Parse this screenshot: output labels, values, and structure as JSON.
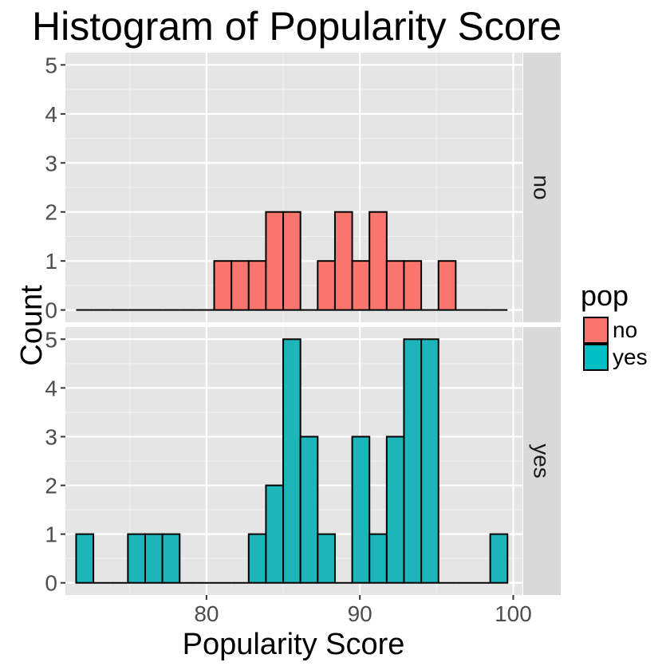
{
  "chart_data": {
    "type": "bar",
    "title": "Histogram of Popularity Score",
    "xlabel": "Popularity Score",
    "ylabel": "Count",
    "xlim": [
      70.8,
      100.6
    ],
    "ylim": [
      -0.25,
      5.25
    ],
    "x_ticks": [
      80,
      90,
      100
    ],
    "y_ticks": [
      0,
      1,
      2,
      3,
      4,
      5
    ],
    "grid": true,
    "legend": {
      "title": "pop",
      "position": "right",
      "entries": [
        {
          "label": "no",
          "color": "#F8766D"
        },
        {
          "label": "yes",
          "color": "#00BFC4"
        }
      ]
    },
    "bins": {
      "start": 71.5,
      "width": 1.125,
      "count": 25
    },
    "facets": [
      {
        "label": "no",
        "color": "#F8766D",
        "counts": [
          0,
          0,
          0,
          0,
          0,
          0,
          0,
          0,
          1,
          1,
          1,
          2,
          2,
          0,
          1,
          2,
          1,
          2,
          1,
          1,
          0,
          1,
          0,
          0,
          0
        ]
      },
      {
        "label": "yes",
        "color": "#1CB5BA",
        "counts": [
          1,
          0,
          0,
          1,
          1,
          1,
          0,
          0,
          0,
          0,
          1,
          2,
          5,
          3,
          1,
          0,
          3,
          1,
          3,
          5,
          5,
          0,
          0,
          0,
          1
        ]
      }
    ]
  }
}
